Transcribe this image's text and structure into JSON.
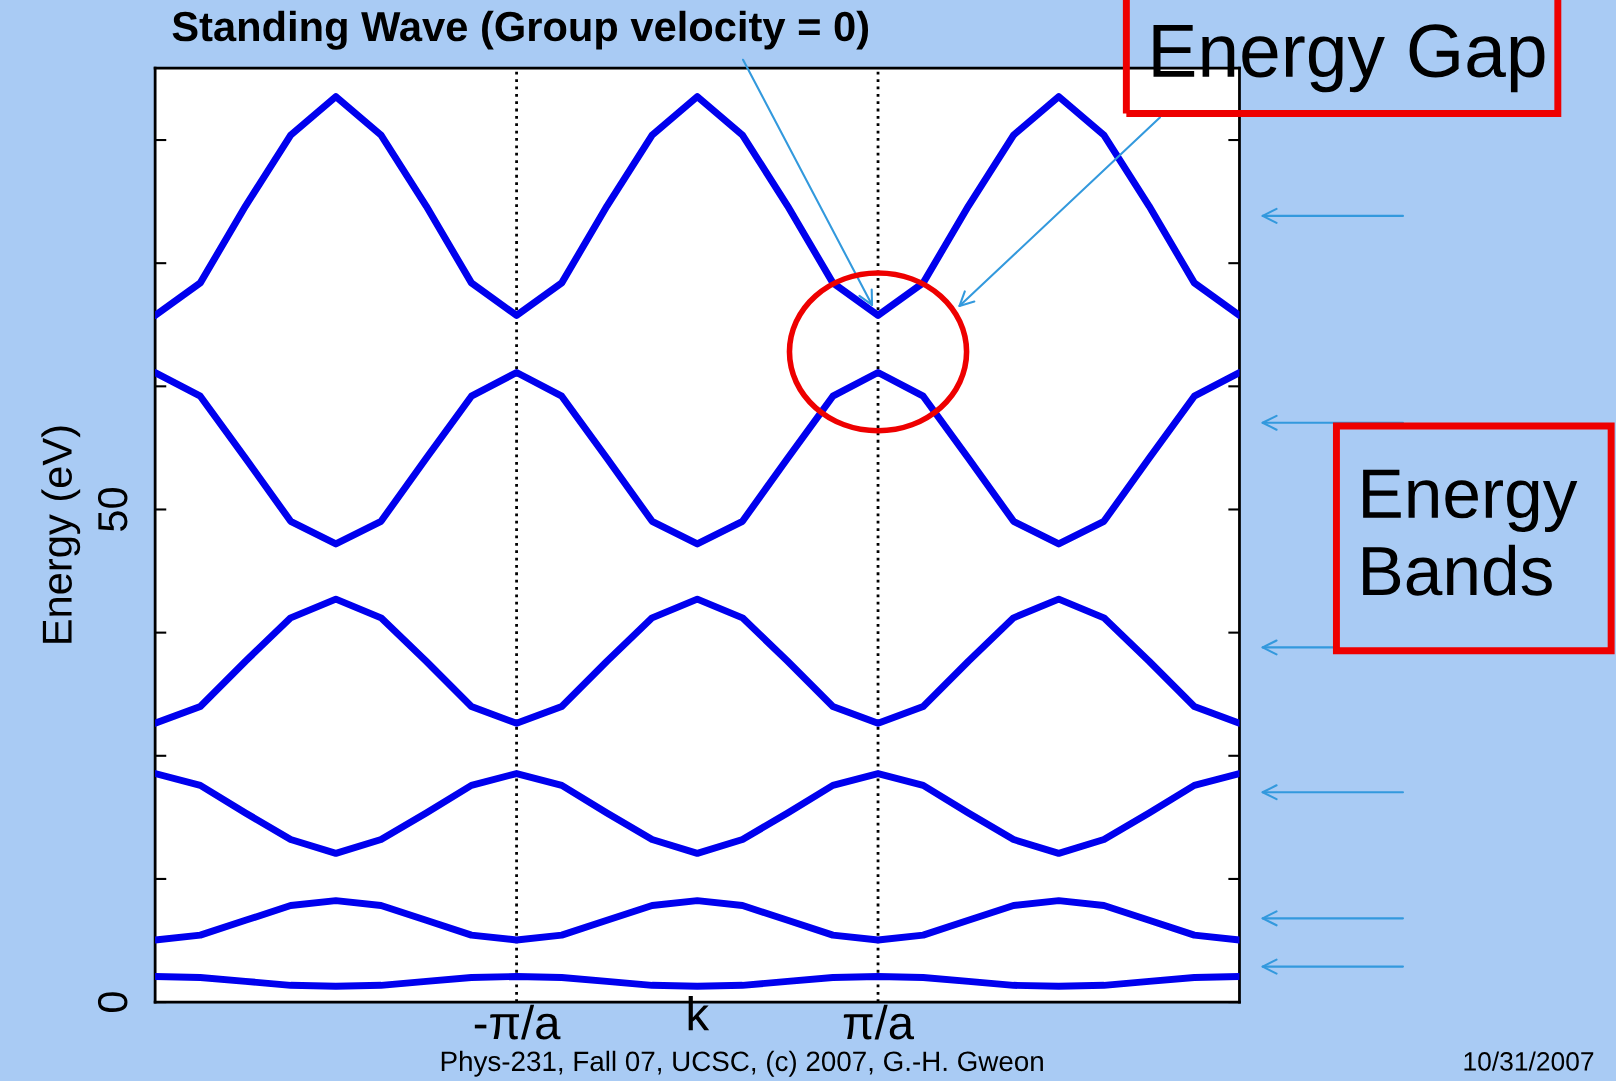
{
  "chart_data": {
    "type": "line",
    "title": "Standing Wave (Group velocity = 0)",
    "xlabel": "k",
    "ylabel": "Energy (eV)",
    "categories": [
      null,
      null,
      null,
      null,
      null,
      null,
      null,
      null,
      "-π/a",
      null,
      null,
      null,
      null,
      null,
      null,
      null,
      "π/a",
      null,
      null,
      null,
      null,
      null,
      null,
      null,
      null
    ],
    "series": [
      {
        "color": "#0000ee",
        "values": [
          2.6,
          2.5,
          2.1,
          1.7,
          1.6,
          1.7,
          2.1,
          2.5,
          2.6,
          2.5,
          2.1,
          1.7,
          1.6,
          1.7,
          2.1,
          2.5,
          2.6,
          2.5,
          2.1,
          1.7,
          1.6,
          1.7,
          2.1,
          2.5,
          2.6
        ]
      },
      {
        "color": "#0000ee",
        "values": [
          6.3,
          6.8,
          8.3,
          9.8,
          10.3,
          9.8,
          8.3,
          6.8,
          6.3,
          6.8,
          8.3,
          9.8,
          10.3,
          9.8,
          8.3,
          6.8,
          6.3,
          6.8,
          8.3,
          9.8,
          10.3,
          9.8,
          8.3,
          6.8,
          6.3
        ]
      },
      {
        "color": "#0000ee",
        "values": [
          23.2,
          22.0,
          19.2,
          16.5,
          15.1,
          16.5,
          19.2,
          22.0,
          23.2,
          22.0,
          19.2,
          16.5,
          15.1,
          16.5,
          19.2,
          22.0,
          23.2,
          22.0,
          19.2,
          16.5,
          15.1,
          16.5,
          19.2,
          22.0,
          23.2
        ]
      },
      {
        "color": "#0000ee",
        "values": [
          28.3,
          30.0,
          34.6,
          39.0,
          40.9,
          39.0,
          34.6,
          30.0,
          28.3,
          30.0,
          34.6,
          39.0,
          40.9,
          39.0,
          34.6,
          30.0,
          28.3,
          30.0,
          34.6,
          39.0,
          40.9,
          39.0,
          34.6,
          30.0,
          28.3
        ]
      },
      {
        "color": "#0000ee",
        "values": [
          63.9,
          61.5,
          55.2,
          48.8,
          46.5,
          48.8,
          55.2,
          61.5,
          63.9,
          61.5,
          55.2,
          48.8,
          46.5,
          48.8,
          55.2,
          61.5,
          63.9,
          61.5,
          55.2,
          48.8,
          46.5,
          48.8,
          55.2,
          61.5,
          63.9
        ]
      },
      {
        "color": "#0000ee",
        "values": [
          69.7,
          73.0,
          80.8,
          88.0,
          91.9,
          88.0,
          80.8,
          73.0,
          69.7,
          73.0,
          80.8,
          88.0,
          91.9,
          88.0,
          80.8,
          73.0,
          69.7,
          73.0,
          80.8,
          88.0,
          91.9,
          88.0,
          80.8,
          73.0,
          69.7
        ]
      }
    ],
    "ylim": [
      0,
      94.8
    ],
    "yticks": [
      0,
      {
        "value": 12.5,
        "label": null
      },
      {
        "value": 25,
        "label": null
      },
      {
        "value": 37.5,
        "label": null
      },
      50,
      {
        "value": 62.5,
        "label": null
      },
      {
        "value": 75,
        "label": null
      },
      {
        "value": 87.5,
        "label": null
      }
    ],
    "ref_lines": [
      {
        "axis": "x",
        "value": "-π/a",
        "label": null,
        "color": "#000000",
        "line_style": "dotted"
      },
      {
        "axis": "x",
        "value": "π/a",
        "label": null,
        "color": "#000000",
        "line_style": "dotted"
      }
    ],
    "annotations": [
      "Energy Gap",
      "Energy Bands",
      "Phys-231, Fall 07, UCSC, (c) 2007, G.-H. Gweon",
      "10/31/2007"
    ],
    "grid": false,
    "legend": false,
    "marker": "none",
    "line_style": "solid"
  }
}
